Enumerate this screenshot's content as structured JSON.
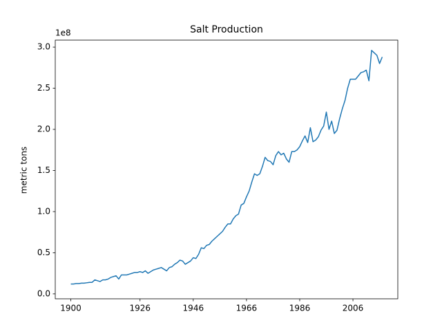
{
  "chart_data": {
    "type": "line",
    "title": "Salt Production",
    "y_label": "metric tons",
    "y_offset_label": "1e8",
    "color": "#1f77b4",
    "grid": false,
    "x": [
      1900,
      1901,
      1902,
      1903,
      1904,
      1905,
      1906,
      1907,
      1908,
      1909,
      1910,
      1911,
      1912,
      1913,
      1914,
      1915,
      1916,
      1917,
      1918,
      1919,
      1920,
      1921,
      1922,
      1923,
      1924,
      1925,
      1926,
      1927,
      1928,
      1929,
      1930,
      1931,
      1932,
      1933,
      1934,
      1935,
      1936,
      1937,
      1938,
      1939,
      1940,
      1941,
      1942,
      1943,
      1944,
      1945,
      1946,
      1947,
      1948,
      1949,
      1950,
      1951,
      1952,
      1953,
      1954,
      1955,
      1956,
      1957,
      1958,
      1959,
      1960,
      1961,
      1962,
      1963,
      1964,
      1965,
      1966,
      1967,
      1968,
      1969,
      1970,
      1971,
      1972,
      1973,
      1974,
      1975,
      1976,
      1977,
      1978,
      1979,
      1980,
      1981,
      1982,
      1983,
      1984,
      1985,
      1986,
      1987,
      1988,
      1989,
      1990,
      1991,
      1992,
      1993,
      1994,
      1995,
      1996,
      1997,
      1998,
      1999,
      2000,
      2001,
      2002,
      2003,
      2004,
      2005,
      2006,
      2007,
      2008,
      2009,
      2010,
      2011,
      2012,
      2013,
      2014,
      2015,
      2016,
      2017
    ],
    "values": [
      0.12,
      0.12,
      0.125,
      0.125,
      0.13,
      0.13,
      0.135,
      0.14,
      0.14,
      0.17,
      0.16,
      0.15,
      0.17,
      0.17,
      0.18,
      0.2,
      0.21,
      0.22,
      0.18,
      0.23,
      0.23,
      0.23,
      0.24,
      0.25,
      0.26,
      0.26,
      0.27,
      0.26,
      0.28,
      0.25,
      0.27,
      0.29,
      0.3,
      0.31,
      0.32,
      0.3,
      0.28,
      0.32,
      0.33,
      0.36,
      0.38,
      0.41,
      0.4,
      0.36,
      0.38,
      0.4,
      0.44,
      0.43,
      0.48,
      0.56,
      0.55,
      0.59,
      0.6,
      0.64,
      0.67,
      0.7,
      0.73,
      0.76,
      0.81,
      0.85,
      0.85,
      0.91,
      0.95,
      0.97,
      1.08,
      1.1,
      1.18,
      1.25,
      1.36,
      1.46,
      1.44,
      1.46,
      1.55,
      1.66,
      1.62,
      1.61,
      1.57,
      1.68,
      1.73,
      1.69,
      1.71,
      1.64,
      1.6,
      1.73,
      1.73,
      1.75,
      1.79,
      1.86,
      1.92,
      1.84,
      2.02,
      1.85,
      1.87,
      1.91,
      1.99,
      2.04,
      2.21,
      2.0,
      2.1,
      1.95,
      1.99,
      2.13,
      2.25,
      2.35,
      2.5,
      2.61,
      2.61,
      2.61,
      2.65,
      2.69,
      2.7,
      2.72,
      2.59,
      2.96,
      2.93,
      2.9,
      2.8,
      2.88
    ],
    "xlim": [
      1894.15,
      2022.85
    ],
    "xticks": [
      1900,
      1926,
      1946,
      1966,
      1986,
      2006
    ],
    "ylim": [
      -0.06,
      3.085
    ],
    "yticks": [
      {
        "value": 0,
        "label": "0.0"
      },
      0.5,
      {
        "value": 1,
        "label": "1.0"
      },
      1.5,
      {
        "value": 2,
        "label": "2.0"
      },
      2.5,
      {
        "value": 3,
        "label": "3.0"
      }
    ]
  }
}
